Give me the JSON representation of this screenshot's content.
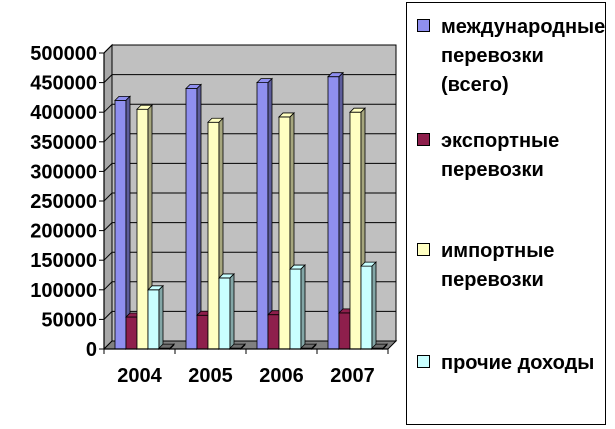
{
  "chart_data": {
    "type": "bar",
    "categories": [
      "2004",
      "2005",
      "2006",
      "2007"
    ],
    "ylim": [
      0,
      500000
    ],
    "yticks": [
      "0",
      "50000",
      "100000",
      "150000",
      "200000",
      "250000",
      "300000",
      "350000",
      "400000",
      "450000",
      "500000"
    ],
    "grid": true,
    "legend_position": "right",
    "series": [
      {
        "name": "международные перевозки (всего)",
        "color": "#8F8FEF",
        "values": [
          420000,
          440000,
          450000,
          460000
        ]
      },
      {
        "name": "экспортные перевозки",
        "color": "#8E1F4C",
        "values": [
          54000,
          57000,
          58000,
          61000
        ]
      },
      {
        "name": "импортные перевозки",
        "color": "#FFFFC2",
        "values": [
          405000,
          383000,
          392000,
          400000
        ]
      },
      {
        "name": "прочие доходы",
        "color": "#C9FFFF",
        "values": [
          100000,
          120000,
          135000,
          140000
        ]
      },
      {
        "name": "",
        "color": "#6E6E6E",
        "values": [
          1500,
          1500,
          1500,
          1500
        ]
      }
    ]
  },
  "legend": {
    "items": [
      {
        "label": "международные перевозки (всего)",
        "color": "#8F8FEF"
      },
      {
        "label": "экспортные перевозки",
        "color": "#8E1F4C"
      },
      {
        "label": "импортные перевозки",
        "color": "#FFFFC2"
      },
      {
        "label": "прочие доходы",
        "color": "#C9FFFF"
      }
    ]
  }
}
